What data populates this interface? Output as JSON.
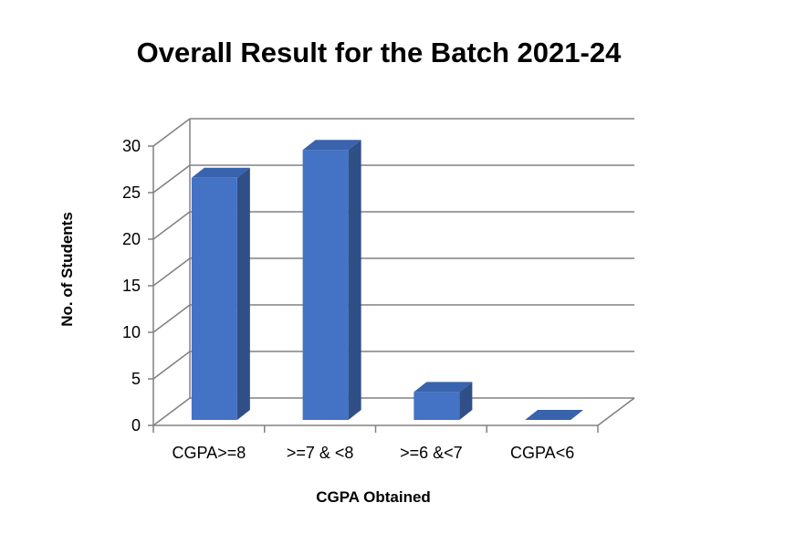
{
  "chart_data": {
    "type": "bar",
    "title": "Overall Result for the Batch 2021-24",
    "xlabel": "CGPA Obtained",
    "ylabel": "No. of Students",
    "categories": [
      "CGPA>=8",
      ">=7 & <8",
      ">=6 &<7",
      "CGPA<6"
    ],
    "values": [
      26,
      29,
      3,
      0
    ],
    "ylim": [
      0,
      30
    ],
    "yticks": [
      "0",
      "5",
      "10",
      "15",
      "20",
      "25",
      "30"
    ],
    "grid": true,
    "legend": "none",
    "three_d": true,
    "colors": {
      "bar_front": "#4472c4",
      "bar_side": "#2f4f86",
      "bar_top": "#3a63ad",
      "grid": "#808080"
    }
  }
}
